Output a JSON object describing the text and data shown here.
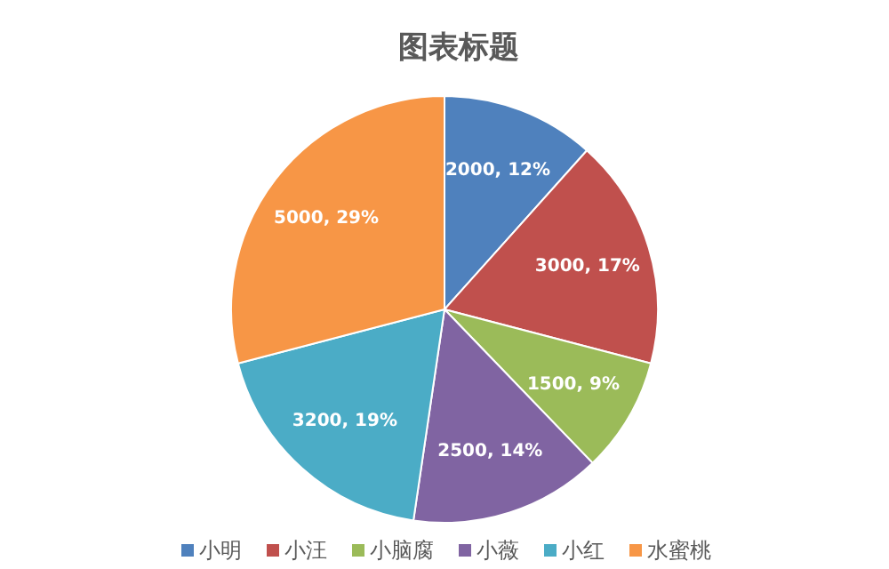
{
  "chart_data": {
    "type": "pie",
    "title": "图表标题",
    "categories": [
      "小明",
      "小汪",
      "小脑腐",
      "小薇",
      "小红",
      "水蜜桃"
    ],
    "values": [
      2000,
      3000,
      1500,
      2500,
      3200,
      5000
    ],
    "colors": [
      "#4f81bd",
      "#c0504d",
      "#9bbb59",
      "#8064a2",
      "#4bacc6",
      "#f79646"
    ],
    "value_labels": [
      "2000, 12%",
      "3000, 17%",
      "1500, 9%",
      "2500, 14%",
      "3200, 19%",
      "5000, 29%"
    ],
    "legend": "bottom"
  }
}
